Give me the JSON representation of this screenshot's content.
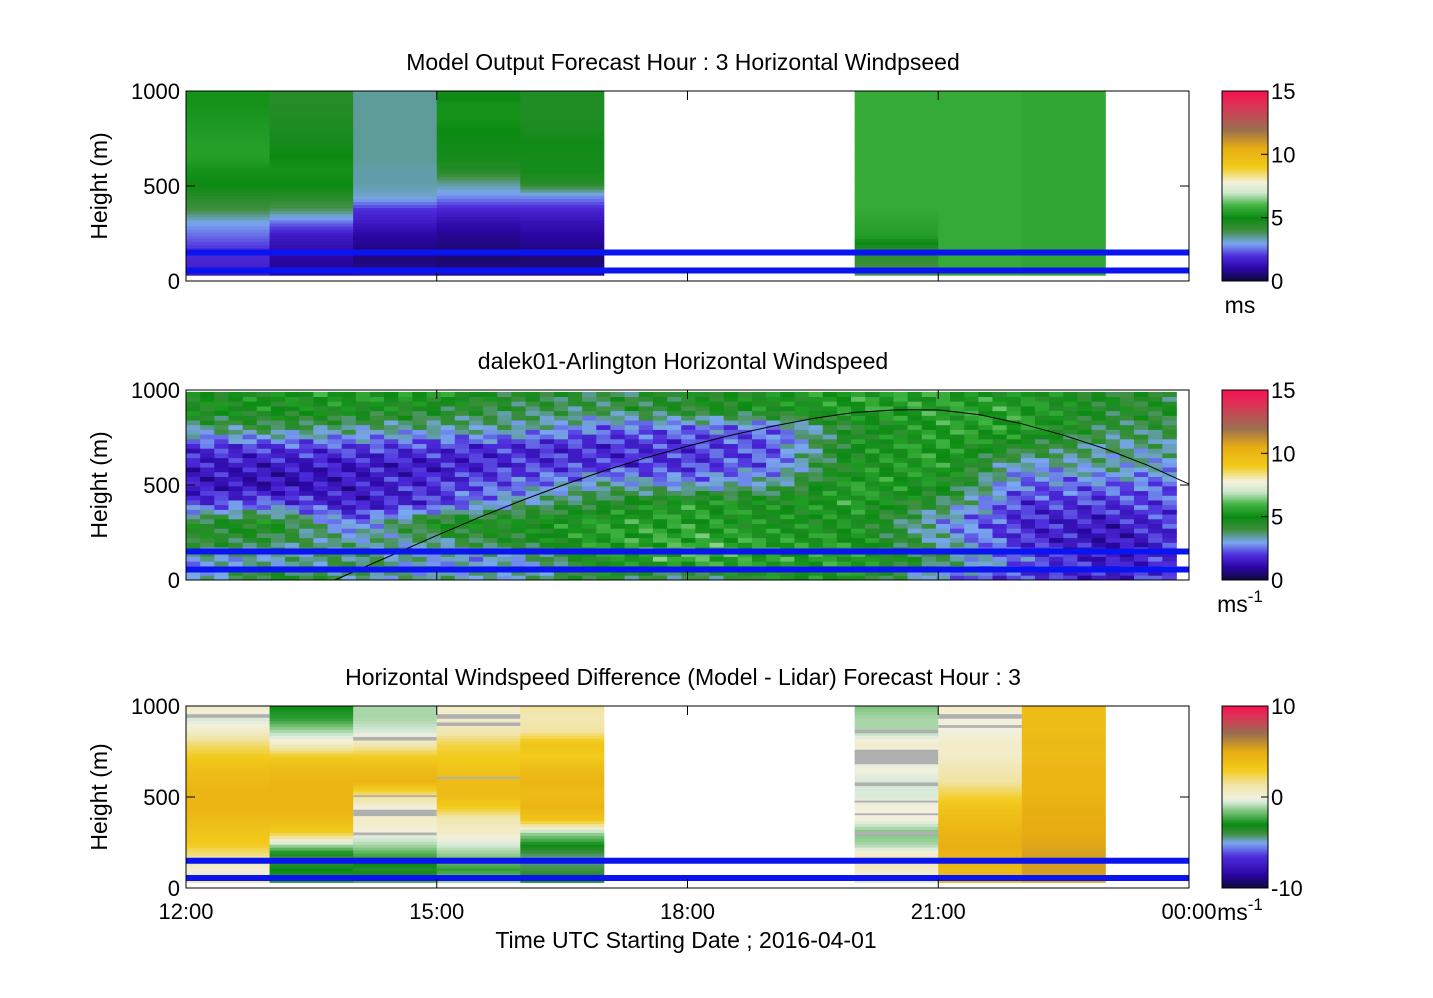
{
  "figure": {
    "xlabel": "Time UTC  Starting Date ; 2016-04-01",
    "x_tick_labels": [
      "12:00",
      "15:00",
      "18:00",
      "21:00",
      "00:00"
    ]
  },
  "chart_data": [
    {
      "type": "heatmap",
      "title": "Model Output   Forecast Hour : 3 Horizontal Windpseed",
      "ylabel": "Height (m)",
      "xlim": [
        12,
        24
      ],
      "ylim": [
        0,
        1000
      ],
      "y_ticks": [
        0,
        500,
        1000
      ],
      "colorbar": {
        "ticks": [
          0,
          5,
          10,
          15
        ],
        "range": [
          0,
          15
        ],
        "unit": "ms",
        "unit_sup": ""
      },
      "time_columns": [
        12,
        13,
        14,
        15,
        16,
        20,
        21,
        22
      ],
      "column_width_hours": 1,
      "data_height_range": [
        30,
        1000
      ],
      "values_low_to_high": [
        [
          1.5,
          1.8,
          2.0,
          2.5,
          3.0,
          4.0,
          4.5,
          5.0,
          5.2,
          5.5,
          5.5,
          5.4,
          5.3,
          5.2,
          5.2
        ],
        [
          1.0,
          0.9,
          1.2,
          1.5,
          2.5,
          3.8,
          4.5,
          5.0,
          5.2,
          5.0,
          4.8,
          4.7,
          4.6,
          4.5,
          4.5
        ],
        [
          1.2,
          0.6,
          0.7,
          1.0,
          1.5,
          2.0,
          3.2,
          3.4,
          3.4,
          3.5,
          3.5,
          3.5,
          3.5,
          3.5,
          3.5
        ],
        [
          1.0,
          0.5,
          0.6,
          0.8,
          1.2,
          1.8,
          2.8,
          3.5,
          4.5,
          4.8,
          4.9,
          5.0,
          5.2,
          5.2,
          4.8
        ],
        [
          1.0,
          0.5,
          0.7,
          1.0,
          1.3,
          1.8,
          2.8,
          4.5,
          4.8,
          4.8,
          4.9,
          4.7,
          4.6,
          4.6,
          4.6
        ],
        [
          3.8,
          4.2,
          4.5,
          5.5,
          5.6,
          5.8,
          5.8,
          5.8,
          5.8,
          5.8,
          5.8,
          5.8,
          5.8,
          5.8,
          5.8
        ],
        [
          5.8,
          5.8,
          5.8,
          5.8,
          5.8,
          5.8,
          5.8,
          5.8,
          5.8,
          5.8,
          5.8,
          5.8,
          5.8,
          5.8,
          5.8
        ],
        [
          5.7,
          5.7,
          5.7,
          5.7,
          5.7,
          5.7,
          5.7,
          5.7,
          5.7,
          5.7,
          5.7,
          5.7,
          5.7,
          5.7,
          5.7
        ]
      ],
      "hlines": [
        150,
        55
      ]
    },
    {
      "type": "heatmap",
      "title": "dalek01-Arlington  Horizontal Windspeed",
      "ylabel": "Height (m)",
      "xlim": [
        12,
        24
      ],
      "ylim": [
        0,
        1000
      ],
      "y_ticks": [
        0,
        500,
        1000
      ],
      "colorbar": {
        "ticks": [
          0,
          5,
          10,
          15
        ],
        "range": [
          0,
          15
        ],
        "unit": "ms",
        "unit_sup": "-1"
      },
      "x_range": [
        12,
        23.85
      ],
      "height_range": [
        0,
        990
      ],
      "time_keys": [
        12,
        13,
        14,
        15,
        16,
        17,
        18,
        19,
        20,
        21,
        22,
        23,
        23.85
      ],
      "height_keys": [
        0,
        100,
        200,
        300,
        400,
        500,
        600,
        700,
        800,
        900,
        1000
      ],
      "values_grid": [
        [
          2.5,
          5.0,
          3.5,
          3.5,
          3.5,
          4.5,
          3.0,
          5.0,
          5.0,
          2.5,
          2.0,
          1.5,
          2.5
        ],
        [
          3.0,
          3.2,
          4.0,
          3.0,
          3.0,
          5.0,
          6.0,
          5.5,
          5.5,
          4.0,
          2.5,
          1.5,
          2.0
        ],
        [
          4.5,
          4.0,
          3.5,
          3.5,
          4.5,
          5.5,
          5.8,
          5.5,
          5.3,
          3.5,
          2.0,
          1.2,
          2.0
        ],
        [
          4.5,
          5.0,
          2.5,
          5.0,
          5.0,
          5.5,
          5.5,
          5.0,
          5.0,
          3.0,
          1.8,
          1.5,
          2.0
        ],
        [
          2.0,
          2.5,
          1.5,
          2.0,
          3.5,
          4.5,
          5.5,
          5.0,
          5.5,
          4.0,
          2.0,
          2.0,
          2.3
        ],
        [
          1.5,
          1.2,
          1.5,
          2.0,
          2.5,
          3.5,
          3.0,
          3.5,
          5.5,
          5.0,
          2.5,
          2.5,
          2.5
        ],
        [
          1.5,
          1.5,
          1.5,
          1.5,
          2.0,
          2.0,
          2.0,
          2.5,
          5.0,
          5.5,
          3.0,
          3.5,
          3.0
        ],
        [
          2.0,
          2.0,
          2.2,
          2.0,
          1.8,
          1.8,
          2.0,
          2.3,
          5.0,
          5.5,
          4.5,
          3.5,
          3.5
        ],
        [
          3.5,
          4.0,
          3.5,
          3.5,
          3.5,
          2.5,
          2.5,
          2.5,
          4.5,
          5.5,
          5.5,
          4.0,
          4.0
        ],
        [
          5.0,
          5.0,
          5.0,
          4.5,
          4.0,
          4.0,
          4.5,
          5.0,
          5.5,
          5.5,
          5.5,
          4.5,
          4.5
        ],
        [
          4.5,
          5.0,
          5.5,
          5.5,
          4.5,
          4.0,
          4.5,
          5.0,
          5.5,
          5.5,
          5.0,
          4.5,
          4.0
        ]
      ],
      "curve": {
        "x": [
          13.78,
          14.5,
          15.0,
          15.5,
          16.0,
          16.5,
          17.0,
          17.5,
          18.0,
          18.5,
          19.0,
          19.5,
          20.0,
          20.5,
          21.0,
          21.5,
          22.0,
          22.5,
          23.0,
          23.5,
          24.0
        ],
        "y": [
          0,
          138,
          235,
          328,
          416,
          498,
          574,
          643,
          705,
          760,
          808,
          850,
          882,
          896,
          895,
          870,
          822,
          762,
          690,
          605,
          505
        ]
      },
      "hlines": [
        150,
        55
      ]
    },
    {
      "type": "heatmap",
      "title": "Horizontal Windspeed Difference (Model - Lidar) Forecast Hour : 3",
      "ylabel": "Height (m)",
      "xlim": [
        12,
        24
      ],
      "ylim": [
        0,
        1000
      ],
      "y_ticks": [
        0,
        500,
        1000
      ],
      "colorbar": {
        "ticks": [
          -10,
          0,
          10
        ],
        "range": [
          -10,
          10
        ],
        "unit": "ms",
        "unit_sup": "-1"
      },
      "time_columns": [
        12,
        13,
        14,
        15,
        16,
        20,
        21,
        22
      ],
      "column_width_hours": 1,
      "data_height_range": [
        30,
        1000
      ],
      "values_low_to_high": [
        [
          1.0,
          0.0,
          1.5,
          3.0,
          3.5,
          4.0,
          4.5,
          4.5,
          4.2,
          3.8,
          3.0,
          2.0,
          0.5,
          -0.5,
          0.5
        ],
        [
          -2.5,
          -3.0,
          -4.0,
          -1.0,
          3.0,
          4.0,
          4.5,
          4.5,
          4.5,
          4.0,
          3.0,
          0.5,
          -1.0,
          -2.5,
          -3.0
        ],
        [
          -2.0,
          -3.5,
          -2.5,
          -1.0,
          0.0,
          0.5,
          0.0,
          2.0,
          4.5,
          4.0,
          3.0,
          1.0,
          -0.5,
          -1.0,
          -1.0
        ],
        [
          -1.0,
          -2.5,
          -1.5,
          -0.5,
          0.5,
          1.0,
          3.0,
          4.0,
          4.0,
          3.5,
          3.0,
          2.5,
          1.0,
          0.5,
          0.5
        ],
        [
          -2.5,
          -4.0,
          -4.5,
          -3.0,
          -1.0,
          3.5,
          4.5,
          4.0,
          4.5,
          4.0,
          3.0,
          3.5,
          1.5,
          1.0,
          1.5
        ],
        [
          -0.5,
          0.5,
          1.0,
          -1.0,
          -1.5,
          0.0,
          0.0,
          -0.5,
          -0.5,
          0.0,
          -0.5,
          0.5,
          -1.0,
          -1.0,
          -1.5
        ],
        [
          4.0,
          4.2,
          4.5,
          4.8,
          4.5,
          4.0,
          3.5,
          2.5,
          1.5,
          1.0,
          0.5,
          0.5,
          0.0,
          0.0,
          0.5
        ],
        [
          5.0,
          5.5,
          5.5,
          5.2,
          5.0,
          5.0,
          4.8,
          4.5,
          4.5,
          4.5,
          4.0,
          4.2,
          4.0,
          4.0,
          4.0
        ]
      ],
      "gray_bands": [
        [
          [
            935,
            955
          ]
        ],
        [],
        [
          [
            810,
            830
          ],
          [
            500,
            510
          ],
          [
            395,
            430
          ],
          [
            290,
            305
          ]
        ],
        [
          [
            930,
            955
          ],
          [
            890,
            910
          ],
          [
            600,
            610
          ]
        ],
        [],
        [
          [
            850,
            870
          ],
          [
            680,
            760
          ],
          [
            560,
            580
          ],
          [
            470,
            480
          ],
          [
            400,
            410
          ],
          [
            290,
            310
          ]
        ],
        [
          [
            930,
            955
          ],
          [
            880,
            895
          ]
        ],
        []
      ],
      "hlines": [
        150,
        55
      ]
    }
  ]
}
